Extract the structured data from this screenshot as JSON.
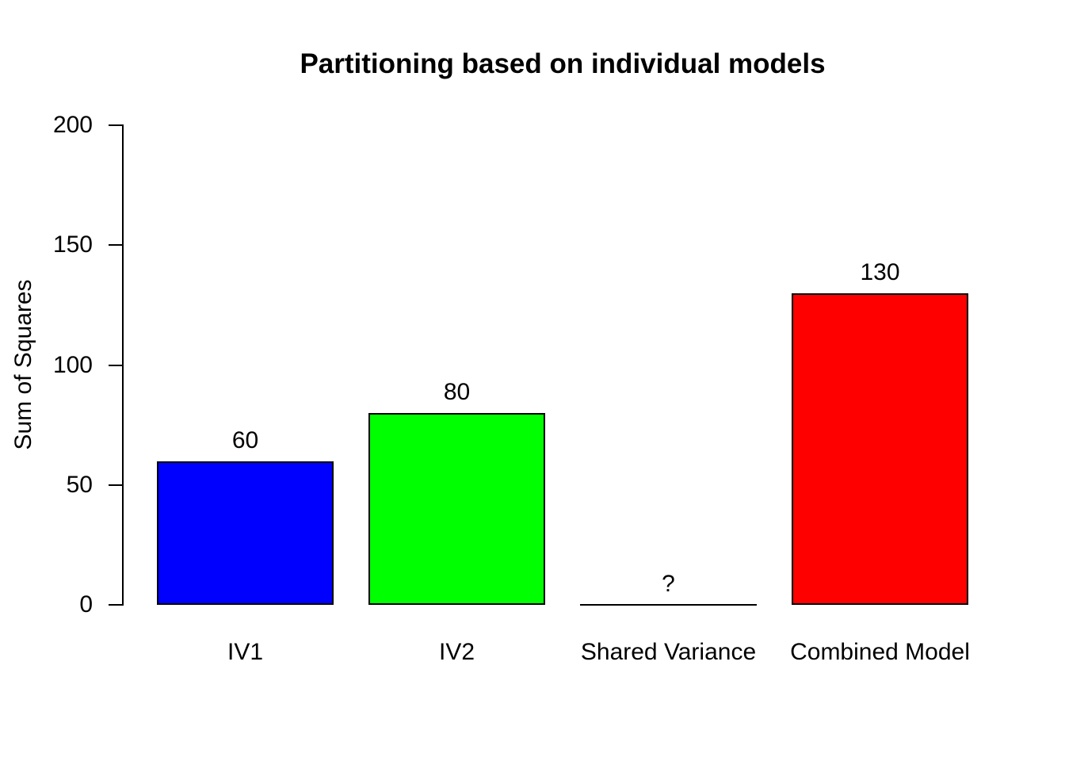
{
  "page": {
    "background_color": "#FFFFFF"
  },
  "chart_data": {
    "type": "bar",
    "title": "Partitioning based on individual models",
    "subtitle": "",
    "xlabel": "",
    "ylabel": "Sum of Squares",
    "ylim": [
      0,
      200
    ],
    "yticks": [
      0,
      50,
      100,
      150,
      200
    ],
    "grid": false,
    "legend_position": null,
    "categories": [
      "IV1",
      "IV2",
      "Shared Variance",
      "Combined Model"
    ],
    "values": [
      60,
      80,
      0,
      130
    ],
    "bar_value_labels": [
      "60",
      "80",
      "?",
      "130"
    ],
    "bar_colors": [
      "#0000FF",
      "#00FF00",
      "#FFFFFF",
      "#FF0000"
    ],
    "bar_border_color": "#000000",
    "axis_color": "#000000",
    "text_color": "#000000"
  }
}
